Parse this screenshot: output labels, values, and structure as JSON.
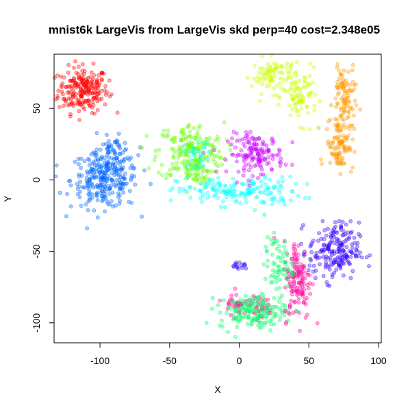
{
  "chart_data": {
    "type": "scatter",
    "title": "mnist6k LargeVis from LargeVis skd perp=40 cost=2.348e05",
    "xlabel": "X",
    "ylabel": "Y",
    "xlim": [
      -133,
      102
    ],
    "ylim": [
      -114,
      88
    ],
    "xticks": [
      -100,
      -50,
      0,
      50,
      100
    ],
    "yticks": [
      -100,
      -50,
      0,
      50
    ],
    "xtick_labels": [
      "-100",
      "-50",
      "0",
      "50",
      "100"
    ],
    "ytick_labels": [
      "-100",
      "-50",
      "0",
      "50"
    ],
    "grid": false,
    "legend": false,
    "point_opacity": 0.35,
    "series": [
      {
        "color": "#ff0000",
        "clusters": [
          {
            "cx": -112,
            "cy": 63,
            "sx": 9,
            "sy": 8,
            "n": 220
          }
        ]
      },
      {
        "color": "#0066ff",
        "clusters": [
          {
            "cx": -97,
            "cy": 0,
            "sx": 12,
            "sy": 10,
            "n": 260
          },
          {
            "cx": -90,
            "cy": 18,
            "sx": 6,
            "sy": 6,
            "n": 60
          }
        ]
      },
      {
        "color": "#66ff00",
        "clusters": [
          {
            "cx": -35,
            "cy": 20,
            "sx": 12,
            "sy": 10,
            "n": 200
          },
          {
            "cx": -32,
            "cy": 4,
            "sx": 6,
            "sy": 5,
            "n": 40
          }
        ]
      },
      {
        "color": "#00ffff",
        "clusters": [
          {
            "cx": 0,
            "cy": -8,
            "sx": 22,
            "sy": 5,
            "n": 160
          },
          {
            "cx": -30,
            "cy": 18,
            "sx": 5,
            "sy": 5,
            "n": 30
          }
        ]
      },
      {
        "color": "#cc00ff",
        "clusters": [
          {
            "cx": 12,
            "cy": 18,
            "sx": 10,
            "sy": 7,
            "n": 150
          }
        ]
      },
      {
        "color": "#ccff00",
        "clusters": [
          {
            "cx": 25,
            "cy": 73,
            "sx": 8,
            "sy": 6,
            "n": 90
          },
          {
            "cx": 44,
            "cy": 58,
            "sx": 6,
            "sy": 9,
            "n": 80
          }
        ]
      },
      {
        "color": "#ff9900",
        "clusters": [
          {
            "cx": 75,
            "cy": 55,
            "sx": 4,
            "sy": 14,
            "n": 110
          },
          {
            "cx": 72,
            "cy": 25,
            "sx": 5,
            "sy": 9,
            "n": 90
          }
        ]
      },
      {
        "color": "#3300ff",
        "clusters": [
          {
            "cx": 68,
            "cy": -50,
            "sx": 9,
            "sy": 10,
            "n": 200
          },
          {
            "cx": 1,
            "cy": -60,
            "sx": 3,
            "sy": 2,
            "n": 15
          }
        ]
      },
      {
        "color": "#ff0099",
        "clusters": [
          {
            "cx": 42,
            "cy": -70,
            "sx": 5,
            "sy": 14,
            "n": 140
          },
          {
            "cx": 0,
            "cy": -86,
            "sx": 6,
            "sy": 4,
            "n": 40
          },
          {
            "cx": 16,
            "cy": -90,
            "sx": 4,
            "sy": 4,
            "n": 25
          }
        ]
      },
      {
        "color": "#00ff66",
        "clusters": [
          {
            "cx": 10,
            "cy": -92,
            "sx": 12,
            "sy": 6,
            "n": 160
          },
          {
            "cx": 28,
            "cy": -60,
            "sx": 5,
            "sy": 10,
            "n": 70
          }
        ]
      }
    ]
  }
}
